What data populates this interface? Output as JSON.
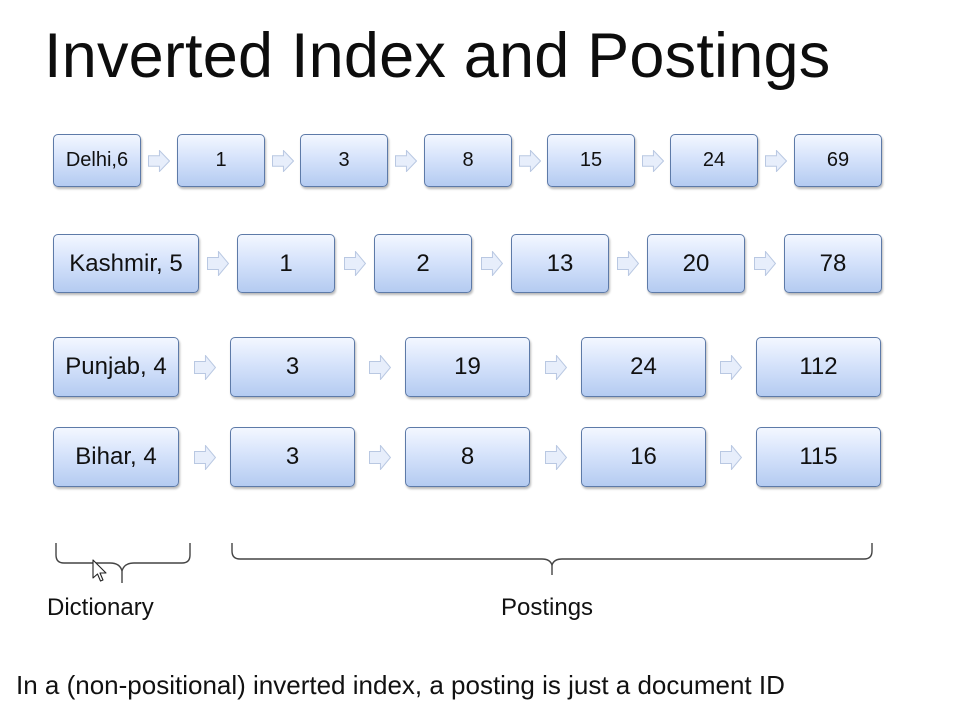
{
  "title": "Inverted Index and Postings",
  "rows": [
    {
      "term": "Delhi,6",
      "postings": [
        "1",
        "3",
        "8",
        "15",
        "24",
        "69"
      ]
    },
    {
      "term": "Kashmir, 5",
      "postings": [
        "1",
        "2",
        "13",
        "20",
        "78"
      ]
    },
    {
      "term": "Punjab, 4",
      "postings": [
        "3",
        "19",
        "24",
        "112"
      ]
    },
    {
      "term": "Bihar, 4",
      "postings": [
        "3",
        "8",
        "16",
        "115"
      ]
    }
  ],
  "labels": {
    "dictionary": "Dictionary",
    "postings": "Postings"
  },
  "caption": "In a (non-positional) inverted index, a posting is just a document ID",
  "colors": {
    "box_top": "#f3f7ff",
    "box_bottom": "#b4cbf1",
    "box_border": "#5d7aa8",
    "arrow_fill": "#e7eefb",
    "arrow_stroke": "#b9c8e2",
    "brace": "#444444"
  },
  "icons": {
    "pointer": "mouse-cursor-icon",
    "connector": "block-arrow-icon"
  }
}
